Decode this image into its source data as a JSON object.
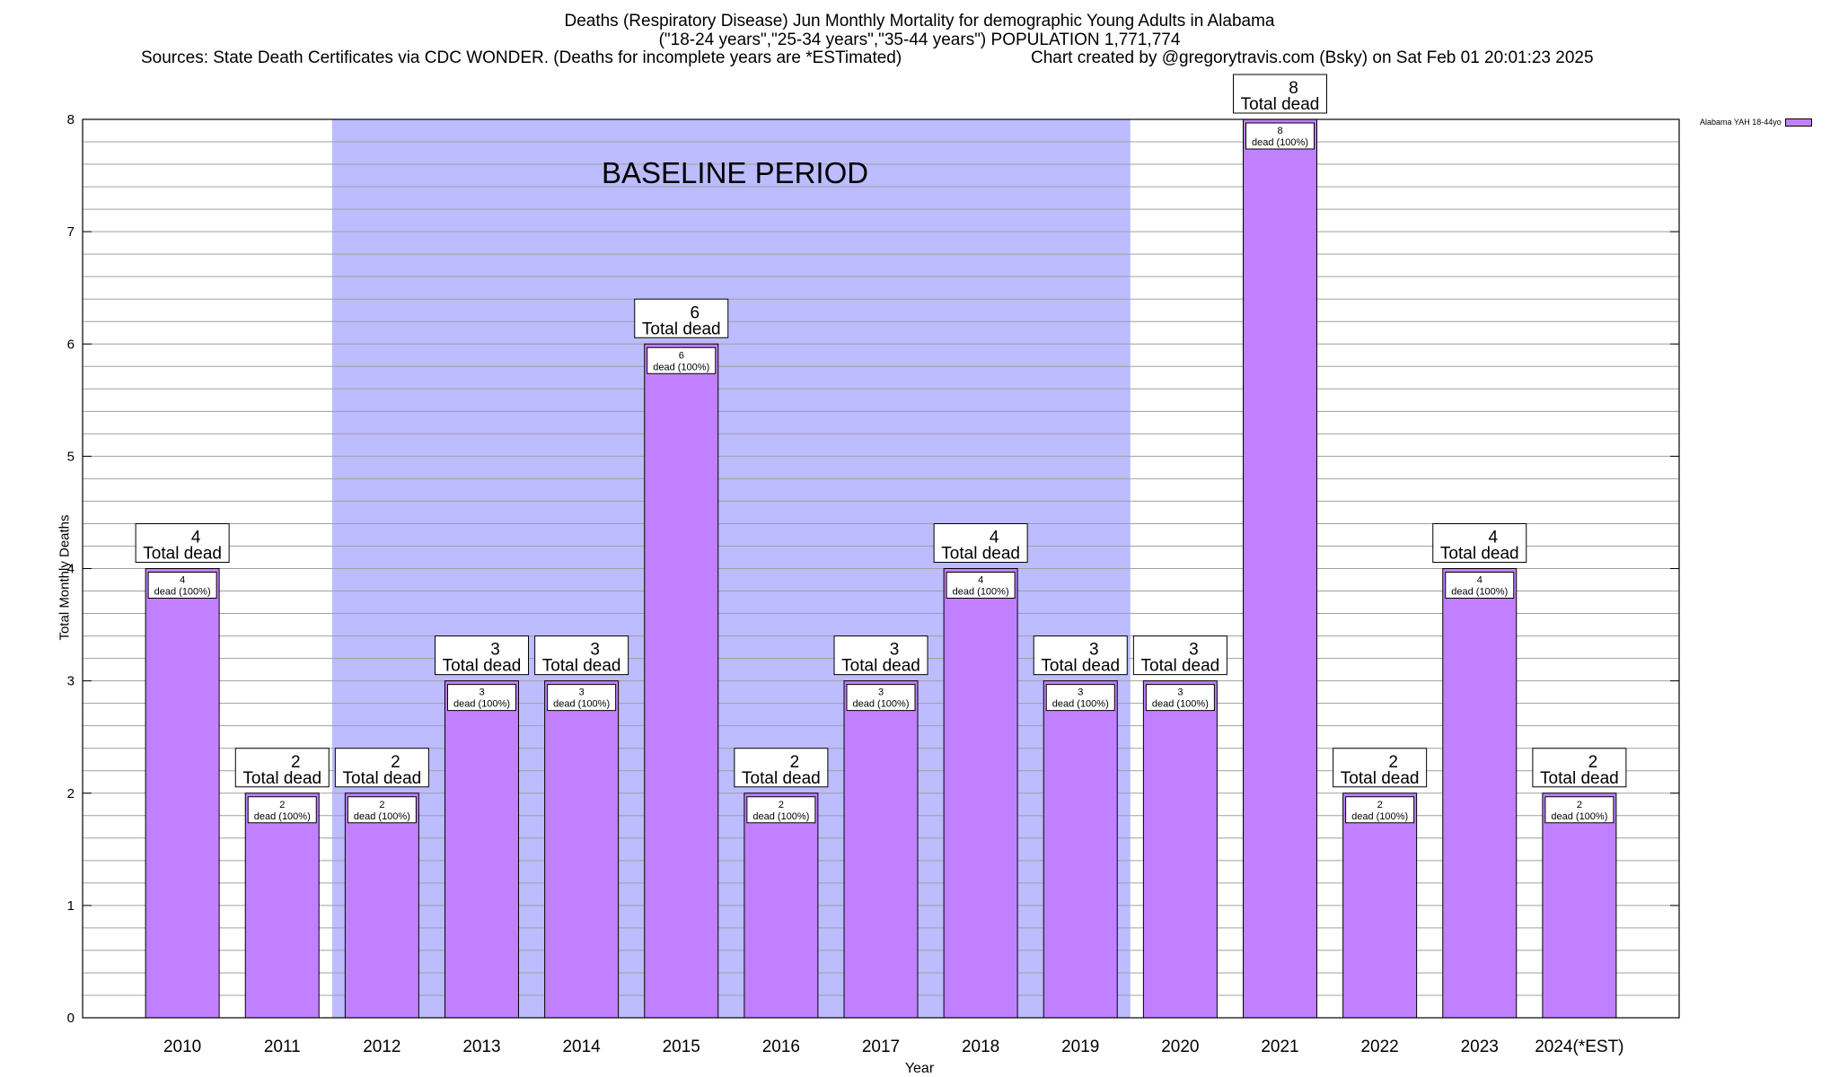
{
  "title": {
    "line1": "Deaths (Respiratory Disease) Jun Monthly Mortality for demographic Young Adults in Alabama",
    "line2": "(\"18-24 years\",\"25-34 years\",\"35-44 years\") POPULATION 1,771,774",
    "line3": "Sources: State Death Certificates via CDC WONDER. (Deaths for incomplete years are *ESTimated)",
    "credit": "Chart created by @gregorytravis.com (Bsky) on Sat Feb 01 20:01:23 2025"
  },
  "annotation": "BASELINE PERIOD",
  "legend": {
    "label": "Alabama YAH 18-44yo",
    "color": "#c080ff"
  },
  "colors": {
    "bar": "#c080ff",
    "baseline": "#bcbcff",
    "grid": "#a0a0a0"
  },
  "chart_data": {
    "type": "bar",
    "xlabel": "Year",
    "ylabel": "Total Monthly Deaths",
    "ylim": [
      0,
      8
    ],
    "yticks": [
      "0",
      "1",
      "2",
      "3",
      "4",
      "5",
      "6",
      "7",
      "8"
    ],
    "categories": [
      "2010",
      "2011",
      "2012",
      "2013",
      "2014",
      "2015",
      "2016",
      "2017",
      "2018",
      "2019",
      "2020",
      "2021",
      "2022",
      "2023",
      "2024(*EST)"
    ],
    "series": [
      {
        "name": "Alabama YAH 18-44yo",
        "values": [
          4,
          2,
          2,
          3,
          3,
          6,
          2,
          3,
          4,
          3,
          3,
          8,
          2,
          4,
          2
        ]
      }
    ],
    "baseline_period": {
      "from": "2012",
      "to": "2019",
      "label": "BASELINE PERIOD"
    },
    "total_label": "Total dead",
    "inner_label": "dead (100%)",
    "grid": true,
    "legend_position": "top-right"
  }
}
